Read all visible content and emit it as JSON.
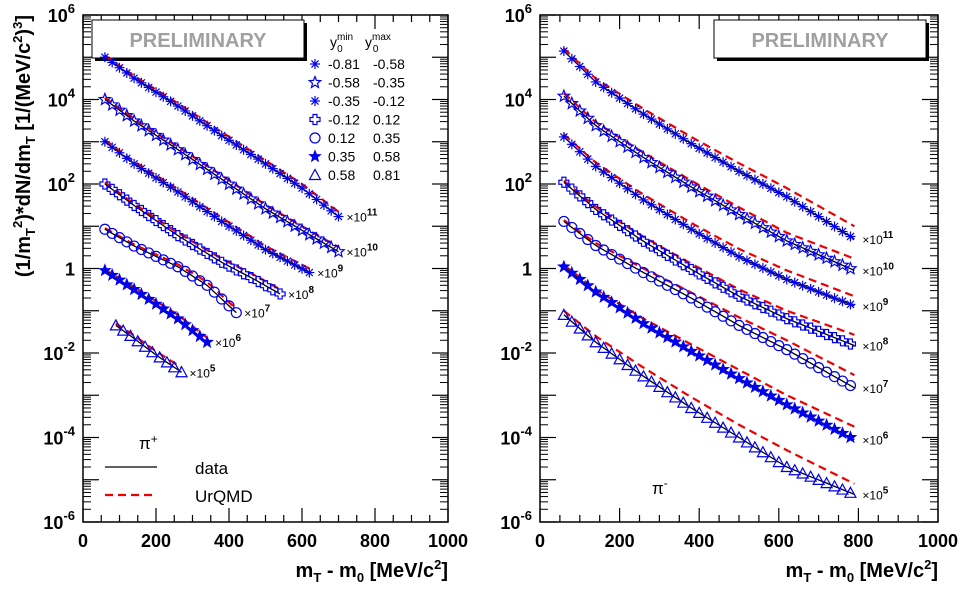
{
  "chart_data": [
    {
      "type": "scatter",
      "panel": "left",
      "watermark": "PRELIMINARY",
      "xlabel": "m_T - m_0 [MeV/c^2]",
      "ylabel": "(1/m_T^2)*dN/dm_T [1/(MeV/c^2)^3]",
      "xlim": [
        0,
        1000
      ],
      "ylim": [
        1e-06,
        1000000.0
      ],
      "ylog": true,
      "x_ticks": [
        "0",
        "200",
        "400",
        "600",
        "800",
        "1000"
      ],
      "y_ticks": [
        "10^-6",
        "10^-4",
        "10^-2",
        "1",
        "10^2",
        "10^4",
        "10^6"
      ],
      "particle_label": "π+",
      "legend": {
        "header_min": "y0^min",
        "header_max": "y0^max",
        "rows": [
          {
            "marker": "asterisk",
            "min": "-0.81",
            "max": "-0.58"
          },
          {
            "marker": "open-star",
            "min": "-0.58",
            "max": "-0.35"
          },
          {
            "marker": "asterisk",
            "min": "-0.35",
            "max": "-0.12"
          },
          {
            "marker": "open-cross",
            "min": "-0.12",
            "max": "0.12"
          },
          {
            "marker": "open-circle",
            "min": "0.12",
            "max": "0.35"
          },
          {
            "marker": "filled-star",
            "min": "0.35",
            "max": "0.58"
          },
          {
            "marker": "open-triangle",
            "min": "0.58",
            "max": "0.81"
          }
        ],
        "data_label": "data",
        "model_label": "UrQMD"
      },
      "series": [
        {
          "scale_exp": "11",
          "x": [
            60,
            140,
            260,
            380,
            500,
            600,
            700
          ],
          "data": [
            100000.0,
            32000.0,
            7000.0,
            1400.0,
            300.0,
            80.0,
            17.0
          ],
          "model": [
            110000.0,
            36000.0,
            8100.0,
            1700.0,
            360.0,
            100.0,
            22.0
          ]
        },
        {
          "scale_exp": "10",
          "x": [
            60,
            140,
            260,
            380,
            500,
            600,
            700
          ],
          "data": [
            10000.0,
            3100.0,
            650.0,
            130.0,
            26.0,
            8.0,
            2.5
          ],
          "model": [
            11000.0,
            3500.0,
            760.0,
            160.0,
            32.0,
            10.0,
            3.2
          ]
        },
        {
          "scale_exp": "9",
          "x": [
            60,
            140,
            260,
            380,
            500,
            620
          ],
          "data": [
            1000.0,
            300.0,
            65.0,
            13.0,
            2.8,
            0.8
          ],
          "model": [
            1100.0,
            340.0,
            76.0,
            16.0,
            3.4,
            1.0
          ]
        },
        {
          "scale_exp": "8",
          "x": [
            60,
            140,
            260,
            380,
            470,
            540
          ],
          "data": [
            100.0,
            31.0,
            6.0,
            1.4,
            0.55,
            0.25
          ],
          "model": [
            110.0,
            34.0,
            7.0,
            1.7,
            0.7,
            0.32
          ]
        },
        {
          "scale_exp": "7",
          "x": [
            60,
            140,
            260,
            340,
            420
          ],
          "data": [
            8.5,
            3.4,
            1.1,
            0.4,
            0.09
          ],
          "model": [
            9.0,
            3.7,
            1.25,
            0.48,
            0.11
          ]
        },
        {
          "scale_exp": "6",
          "x": [
            60,
            140,
            260,
            340
          ],
          "data": [
            0.9,
            0.32,
            0.065,
            0.018
          ],
          "model": [
            0.95,
            0.36,
            0.08,
            0.023
          ]
        },
        {
          "scale_exp": "5",
          "x": [
            90,
            140,
            200,
            270
          ],
          "data": [
            0.045,
            0.022,
            0.009,
            0.0035
          ],
          "model": [
            0.05,
            0.026,
            0.011,
            0.0045
          ]
        }
      ]
    },
    {
      "type": "scatter",
      "panel": "right",
      "watermark": "PRELIMINARY",
      "xlabel": "m_T - m_0 [MeV/c^2]",
      "xlim": [
        0,
        1000
      ],
      "ylim": [
        1e-06,
        1000000.0
      ],
      "ylog": true,
      "x_ticks": [
        "0",
        "200",
        "400",
        "600",
        "800",
        "1000"
      ],
      "y_ticks": [
        "10^-6",
        "10^-4",
        "10^-2",
        "1",
        "10^2",
        "10^4",
        "10^6"
      ],
      "particle_label": "π-",
      "series": [
        {
          "scale_exp": "11",
          "x": [
            60,
            140,
            260,
            380,
            500,
            620,
            790
          ],
          "data": [
            140000.0,
            26000.0,
            4500.0,
            900.0,
            200.0,
            50.0,
            5.0
          ],
          "model": [
            160000.0,
            31000.0,
            6000.0,
            1300.0,
            310.0,
            80.0,
            10.0
          ]
        },
        {
          "scale_exp": "10",
          "x": [
            60,
            140,
            260,
            380,
            500,
            620,
            790
          ],
          "data": [
            12000.0,
            2400.0,
            420.0,
            85.0,
            19.0,
            4.5,
            0.9
          ],
          "model": [
            14000.0,
            2900.0,
            550.0,
            120.0,
            28.0,
            7.0,
            1.7
          ]
        },
        {
          "scale_exp": "9",
          "x": [
            60,
            140,
            260,
            380,
            500,
            620,
            790
          ],
          "data": [
            1300.0,
            260.0,
            42.0,
            8.5,
            1.9,
            0.55,
            0.13
          ],
          "model": [
            1500.0,
            320.0,
            56.0,
            12.0,
            2.9,
            0.9,
            0.22
          ]
        },
        {
          "scale_exp": "8",
          "x": [
            60,
            140,
            260,
            380,
            500,
            620,
            790
          ],
          "data": [
            110.0,
            25.0,
            4.4,
            0.95,
            0.22,
            0.065,
            0.015
          ],
          "model": [
            120.0,
            29.0,
            5.6,
            1.3,
            0.32,
            0.1,
            0.027
          ]
        },
        {
          "scale_exp": "7",
          "x": [
            60,
            140,
            260,
            380,
            500,
            620,
            790
          ],
          "data": [
            13.0,
            3.5,
            0.8,
            0.2,
            0.045,
            0.012,
            0.0015
          ],
          "model": [
            14.0,
            4.0,
            1.0,
            0.27,
            0.07,
            0.02,
            0.003
          ]
        },
        {
          "scale_exp": "6",
          "x": [
            60,
            140,
            260,
            380,
            500,
            620,
            790
          ],
          "data": [
            1.1,
            0.28,
            0.05,
            0.011,
            0.0025,
            0.0006,
            9e-05
          ],
          "model": [
            1.2,
            0.32,
            0.065,
            0.016,
            0.004,
            0.001,
            0.00018
          ]
        },
        {
          "scale_exp": "5",
          "x": [
            60,
            140,
            260,
            380,
            500,
            620,
            790
          ],
          "data": [
            0.08,
            0.018,
            0.0028,
            0.0005,
            0.0001,
            2e-05,
            4.5e-06
          ],
          "model": [
            0.1,
            0.025,
            0.0045,
            0.0009,
            0.0002,
            5e-05,
            8e-06
          ]
        }
      ]
    }
  ],
  "colors": {
    "data": "#0000ee",
    "model": "#ee0000",
    "axis": "#000000",
    "watermark_text": "#a0a0a0"
  }
}
